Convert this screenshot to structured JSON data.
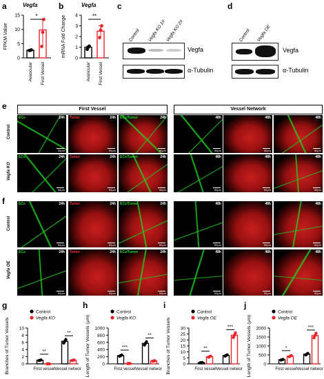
{
  "panels": {
    "a": {
      "letter": "a",
      "title": "Vegfa"
    },
    "b": {
      "letter": "b",
      "title": "Vegfa"
    },
    "c": {
      "letter": "c",
      "lanes": [
        "Control",
        "Vegfa KO 1#",
        "Vegfa KO 2#"
      ],
      "bands": [
        "Vegfa",
        "α-Tubulin"
      ]
    },
    "d": {
      "letter": "d",
      "lanes": [
        "Control",
        "Vegfa OE"
      ],
      "bands": [
        "Vegfa",
        "α-Tubulin"
      ]
    },
    "e": {
      "letter": "e",
      "header_left": "First Vessel",
      "header_right": "Vessel Network",
      "rows": [
        "Control",
        "Vegfa KO"
      ]
    },
    "f": {
      "letter": "f",
      "rows": [
        "Control",
        "Vegfa OE"
      ]
    },
    "g": {
      "letter": "g"
    },
    "h": {
      "letter": "h"
    },
    "i": {
      "letter": "i"
    },
    "j": {
      "letter": "j"
    }
  },
  "microscopy": {
    "channel_labels": [
      "ECs",
      "Tumor",
      "ECs/Tumor"
    ],
    "time_first": "24h",
    "time_network": "48h",
    "scale_bar": "50μm"
  },
  "chart_data": [
    {
      "id": "a",
      "type": "bar",
      "ylabel": "FPKM Value",
      "categories": [
        "Avascular",
        "First Vessel"
      ],
      "values": [
        2.7,
        9.8
      ],
      "points": [
        [
          2.6,
          2.7,
          2.8
        ],
        [
          4,
          9,
          13.5
        ]
      ],
      "ylim": [
        0,
        15
      ],
      "yticks": [
        0,
        5,
        10,
        15
      ],
      "colors": [
        "#000000",
        "#e8232a"
      ],
      "significance": "*"
    },
    {
      "id": "b",
      "type": "bar",
      "ylabel": "mRNA Fold Change",
      "categories": [
        "Avascular",
        "First Vessel"
      ],
      "values": [
        1.0,
        2.5
      ],
      "points": [
        [
          0.8,
          1.0,
          1.1
        ],
        [
          1.9,
          2.6,
          3.0
        ]
      ],
      "ylim": [
        0,
        4
      ],
      "yticks": [
        0,
        1,
        2,
        3,
        4
      ],
      "colors": [
        "#000000",
        "#e8232a"
      ],
      "significance": "**"
    },
    {
      "id": "g",
      "type": "bar",
      "ylabel": "Branches of Tumor Vessels",
      "legend": [
        "Control",
        "Vegfa KO"
      ],
      "categories": [
        "First vessel",
        "Vessel network"
      ],
      "series": [
        {
          "name": "Control",
          "values": [
            1,
            6.3
          ]
        },
        {
          "name": "Vegfa KO",
          "values": [
            0,
            1
          ]
        }
      ],
      "ylim": [
        0,
        10
      ],
      "yticks": [
        0,
        2,
        4,
        6,
        8,
        10
      ],
      "significance": [
        "**",
        "**"
      ]
    },
    {
      "id": "h",
      "type": "bar",
      "ylabel": "Length of Tumor Vessels (μm)",
      "legend": [
        "Control",
        "Vegfa KO"
      ],
      "categories": [
        "First vessel",
        "Vessel network"
      ],
      "series": [
        {
          "name": "Control",
          "values": [
            230,
            570
          ]
        },
        {
          "name": "Vegfa KO",
          "values": [
            10,
            80
          ]
        }
      ],
      "ylim": [
        0,
        1000
      ],
      "yticks": [
        0,
        200,
        400,
        600,
        800,
        1000
      ],
      "significance": [
        "***",
        "**"
      ]
    },
    {
      "id": "i",
      "type": "bar",
      "ylabel": "Branches of Tumor Vessels",
      "legend": [
        "Control",
        "Vegfa OE"
      ],
      "categories": [
        "First vessel",
        "Vessel network"
      ],
      "series": [
        {
          "name": "Control",
          "values": [
            1,
            7
          ]
        },
        {
          "name": "Vegfa OE",
          "values": [
            6,
            24
          ]
        }
      ],
      "ylim": [
        0,
        30
      ],
      "yticks": [
        0,
        5,
        10,
        15,
        20,
        25,
        30
      ],
      "significance": [
        "**",
        "***"
      ]
    },
    {
      "id": "j",
      "type": "bar",
      "ylabel": "Length of Tumor Vessels (μm)",
      "legend": [
        "Control",
        "Vegfa OE"
      ],
      "categories": [
        "First vessel",
        "Vessel network"
      ],
      "series": [
        {
          "name": "Control",
          "values": [
            230,
            540
          ]
        },
        {
          "name": "Vegfa OE",
          "values": [
            430,
            1580
          ]
        }
      ],
      "ylim": [
        0,
        2000
      ],
      "yticks": [
        0,
        500,
        1000,
        1500,
        2000
      ],
      "significance": [
        "*",
        "***"
      ]
    }
  ]
}
